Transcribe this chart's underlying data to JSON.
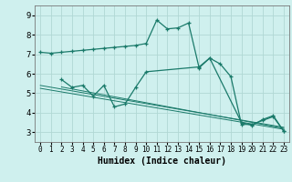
{
  "background_color": "#cff0ee",
  "grid_color": "#b0d8d4",
  "line_color": "#1a7a6a",
  "xlabel": "Humidex (Indice chaleur)",
  "xlabel_fontsize": 7,
  "tick_fontsize_x": 5.5,
  "tick_fontsize_y": 6.5,
  "xlim": [
    -0.5,
    23.5
  ],
  "ylim": [
    2.5,
    9.5
  ],
  "yticks": [
    3,
    4,
    5,
    6,
    7,
    8,
    9
  ],
  "xticks": [
    0,
    1,
    2,
    3,
    4,
    5,
    6,
    7,
    8,
    9,
    10,
    11,
    12,
    13,
    14,
    15,
    16,
    17,
    18,
    19,
    20,
    21,
    22,
    23
  ],
  "line1_x": [
    0,
    1,
    2,
    3,
    4,
    5,
    6,
    7,
    8,
    9,
    10,
    11,
    12,
    13,
    14,
    15,
    16,
    17,
    18,
    19,
    20,
    21,
    22,
    23
  ],
  "line1_y": [
    7.1,
    7.05,
    7.1,
    7.15,
    7.2,
    7.25,
    7.3,
    7.35,
    7.4,
    7.45,
    7.55,
    8.75,
    8.3,
    8.35,
    8.6,
    6.3,
    6.8,
    6.5,
    5.85,
    3.4,
    3.4,
    3.6,
    3.8,
    3.05
  ],
  "line2_x": [
    2,
    3,
    4,
    5,
    6,
    7,
    8,
    9,
    10,
    15,
    16,
    19,
    20,
    21,
    22,
    23
  ],
  "line2_y": [
    5.7,
    5.3,
    5.4,
    4.85,
    5.4,
    4.3,
    4.45,
    5.3,
    6.1,
    6.35,
    6.8,
    3.5,
    3.35,
    3.65,
    3.85,
    3.05
  ],
  "line3_x": [
    0,
    23
  ],
  "line3_y": [
    5.4,
    3.25
  ],
  "line4_x": [
    0,
    23
  ],
  "line4_y": [
    5.25,
    3.15
  ],
  "line5_x": [
    2,
    23
  ],
  "line5_y": [
    5.32,
    3.2
  ]
}
